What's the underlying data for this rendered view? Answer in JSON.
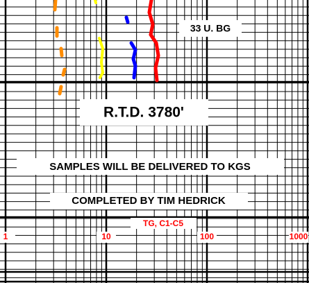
{
  "annotations": {
    "background_gas": "33 U. BG",
    "rtd": "R.T.D. 3780'",
    "samples": "SAMPLES WILL BE DELIVERED TO KGS",
    "completed": "COMPLETED BY TIM HEDRICK"
  },
  "scale": {
    "label": "TG, C1-C5",
    "ticks": [
      "1",
      "10",
      "100",
      "1000"
    ]
  }
}
